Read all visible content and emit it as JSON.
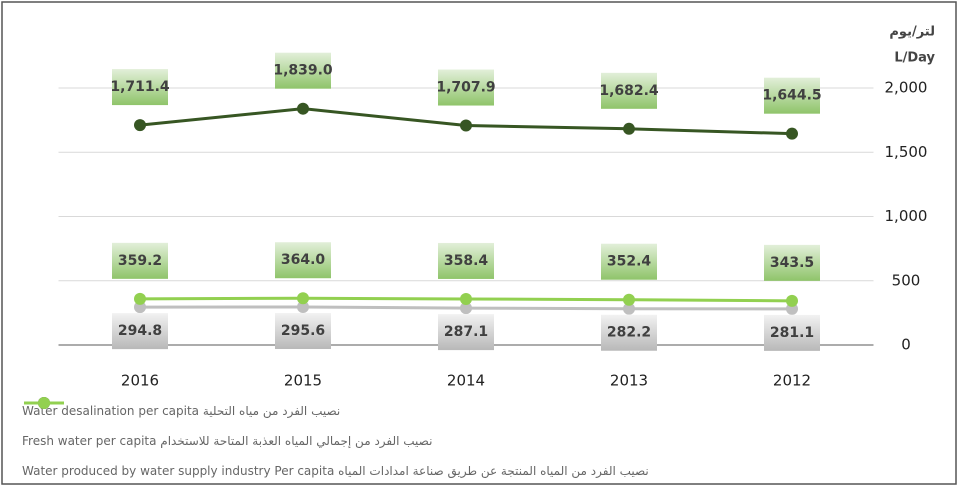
{
  "chart_data": {
    "type": "line",
    "y_axis_title_ar": "لتر/يوم",
    "y_axis_title_en": "L/Day",
    "categories": [
      "2016",
      "2015",
      "2014",
      "2013",
      "2012"
    ],
    "ylim": [
      0,
      2000
    ],
    "yticks": [
      {
        "value": 0,
        "label": "0"
      },
      {
        "value": 500,
        "label": "500"
      },
      {
        "value": 1000,
        "label": "1,000"
      },
      {
        "value": 1500,
        "label": "1,500"
      },
      {
        "value": 2000,
        "label": "2,000"
      }
    ],
    "grid": true,
    "legend": "bottom-left",
    "series": [
      {
        "name": "نصيب الفرد من مياه التحلية Water desalination  per capita",
        "color": "#bfbfbf",
        "label_position": "below",
        "values": [
          294.8,
          295.6,
          287.1,
          282.2,
          281.1
        ]
      },
      {
        "name": "نصيب الفرد من إجمالي المياه العذبة المتاحة للاستخدام Fresh water per capita",
        "color": "#375623",
        "label_position": "above",
        "values": [
          1711.4,
          1839.0,
          1707.9,
          1682.4,
          1644.5
        ],
        "value_labels": [
          "1,711.4",
          "1,839.0",
          "1,707.9",
          "1,682.4",
          "1,644.5"
        ]
      },
      {
        "name": "نصيب الفرد من المياه المنتجة عن طريق صناعة امدادات المياه Water produced by water supply industry Per capita",
        "color": "#92d050",
        "label_position": "above",
        "values": [
          359.2,
          364.0,
          358.4,
          352.4,
          343.5
        ],
        "value_labels": [
          "359.2",
          "364.0",
          "358.4",
          "352.4",
          "343.5"
        ]
      }
    ]
  }
}
